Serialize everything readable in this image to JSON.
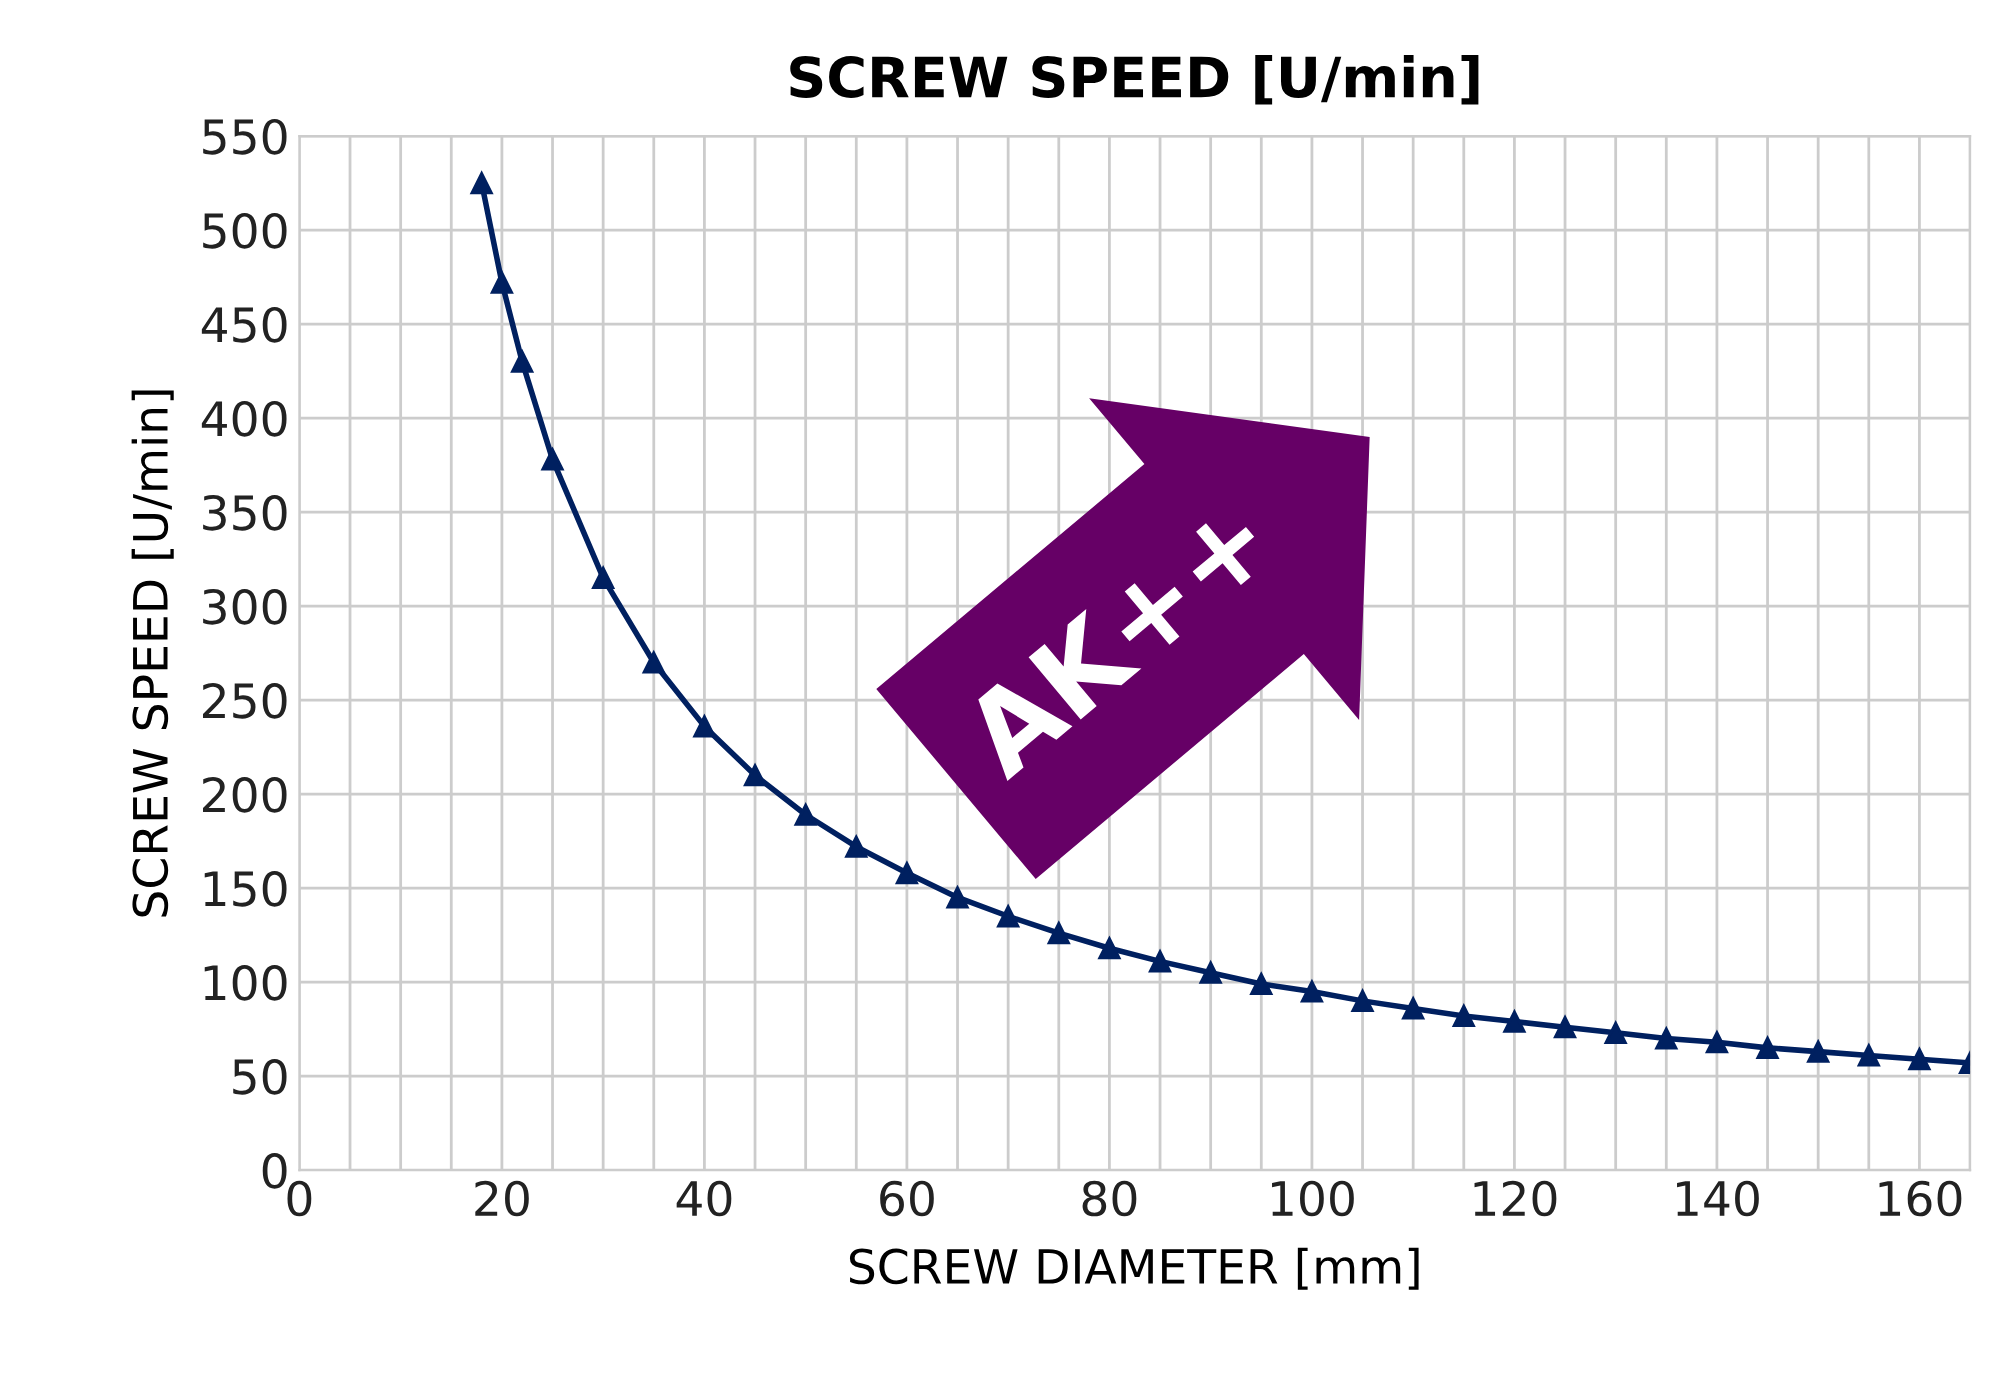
{
  "chart_data": {
    "type": "line",
    "title": "SCREW SPEED [U/min]",
    "xlabel": "SCREW DIAMETER [mm]",
    "ylabel": "SCREW SPEED [U/min]",
    "annotations": [
      "AK++"
    ],
    "series": [
      {
        "color": "#002060",
        "x": [
          18,
          20,
          22,
          25,
          30,
          35,
          40,
          45,
          50,
          55,
          60,
          65,
          70,
          75,
          80,
          85,
          90,
          95,
          100,
          105,
          110,
          115,
          120,
          125,
          130,
          135,
          140,
          145,
          150,
          155,
          160,
          165
        ],
        "values": [
          525,
          472,
          430,
          378,
          315,
          270,
          236,
          210,
          189,
          172,
          158,
          145,
          135,
          126,
          118,
          111,
          105,
          99,
          95,
          90,
          86,
          82,
          79,
          76,
          73,
          70,
          68,
          65,
          63,
          61,
          59,
          57
        ]
      }
    ],
    "xlim": [
      0,
      165
    ],
    "xticks": [
      0,
      {
        "value": 5,
        "label": null
      },
      {
        "value": 10,
        "label": null
      },
      {
        "value": 15,
        "label": null
      },
      20,
      {
        "value": 25,
        "label": null
      },
      {
        "value": 30,
        "label": null
      },
      {
        "value": 35,
        "label": null
      },
      40,
      {
        "value": 45,
        "label": null
      },
      {
        "value": 50,
        "label": null
      },
      {
        "value": 55,
        "label": null
      },
      60,
      {
        "value": 65,
        "label": null
      },
      {
        "value": 70,
        "label": null
      },
      {
        "value": 75,
        "label": null
      },
      80,
      {
        "value": 85,
        "label": null
      },
      {
        "value": 90,
        "label": null
      },
      {
        "value": 95,
        "label": null
      },
      100,
      {
        "value": 105,
        "label": null
      },
      {
        "value": 110,
        "label": null
      },
      {
        "value": 115,
        "label": null
      },
      120,
      {
        "value": 125,
        "label": null
      },
      {
        "value": 130,
        "label": null
      },
      {
        "value": 135,
        "label": null
      },
      140,
      {
        "value": 145,
        "label": null
      },
      {
        "value": 150,
        "label": null
      },
      {
        "value": 155,
        "label": null
      },
      160,
      {
        "value": 165,
        "label": null
      }
    ],
    "ylim": [
      0,
      550
    ],
    "yticks": [
      0,
      50,
      100,
      150,
      200,
      250,
      300,
      350,
      400,
      450,
      500,
      550
    ],
    "grid": true,
    "legend": false,
    "marker": "triangle",
    "line_style": "solid"
  }
}
